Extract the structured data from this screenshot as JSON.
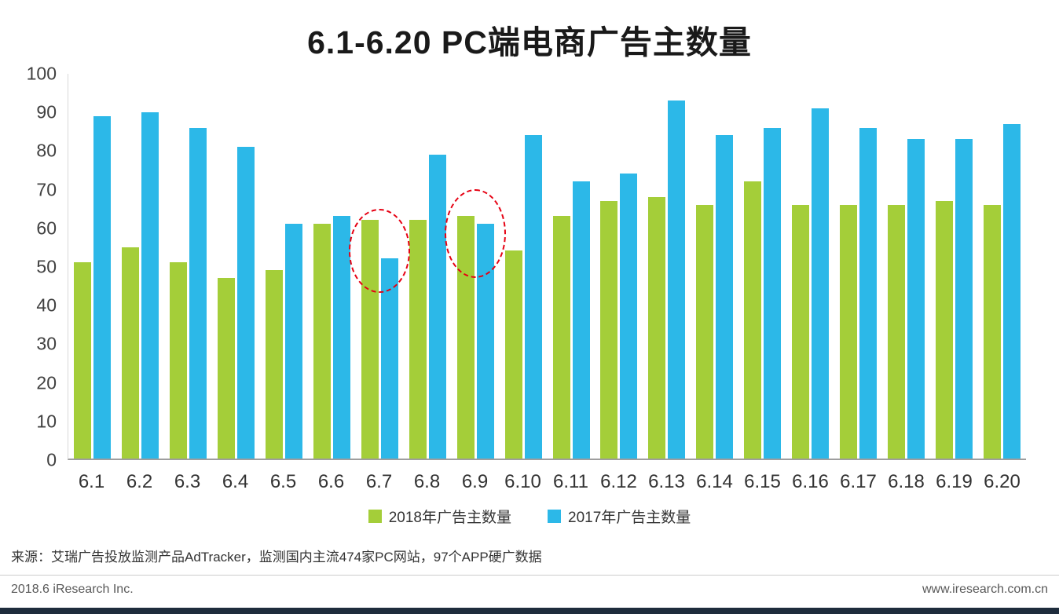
{
  "chart_data": {
    "type": "bar",
    "title": "6.1-6.20 PC端电商广告主数量",
    "categories": [
      "6.1",
      "6.2",
      "6.3",
      "6.4",
      "6.5",
      "6.6",
      "6.7",
      "6.8",
      "6.9",
      "6.10",
      "6.11",
      "6.12",
      "6.13",
      "6.14",
      "6.15",
      "6.16",
      "6.17",
      "6.18",
      "6.19",
      "6.20"
    ],
    "series": [
      {
        "name": "2018年广告主数量",
        "color": "#a4ce39",
        "values": [
          51,
          55,
          51,
          47,
          49,
          61,
          62,
          62,
          63,
          54,
          63,
          67,
          68,
          66,
          72,
          66,
          66,
          66,
          67,
          66
        ]
      },
      {
        "name": "2017年广告主数量",
        "color": "#2cb8e8",
        "values": [
          89,
          90,
          86,
          81,
          61,
          63,
          52,
          79,
          61,
          84,
          72,
          74,
          93,
          84,
          86,
          91,
          86,
          83,
          83,
          87
        ]
      }
    ],
    "xlabel": "",
    "ylabel": "",
    "ylim": [
      0,
      100
    ],
    "yticks": [
      0,
      10,
      20,
      30,
      40,
      50,
      60,
      70,
      80,
      90,
      100
    ],
    "grid": false,
    "legend_position": "bottom",
    "annotations": [
      {
        "type": "dashed-ellipse",
        "category": "6.7",
        "value_top": 65,
        "value_bottom": 43,
        "color": "#e60012"
      },
      {
        "type": "dashed-ellipse",
        "category": "6.9",
        "value_top": 70,
        "value_bottom": 47,
        "color": "#e60012"
      }
    ]
  },
  "footer": {
    "source": "来源：艾瑞广告投放监测产品AdTracker，监测国内主流474家PC网站，97个APP硬广数据",
    "left": "2018.6 iResearch Inc.",
    "right": "www.iresearch.com.cn"
  }
}
